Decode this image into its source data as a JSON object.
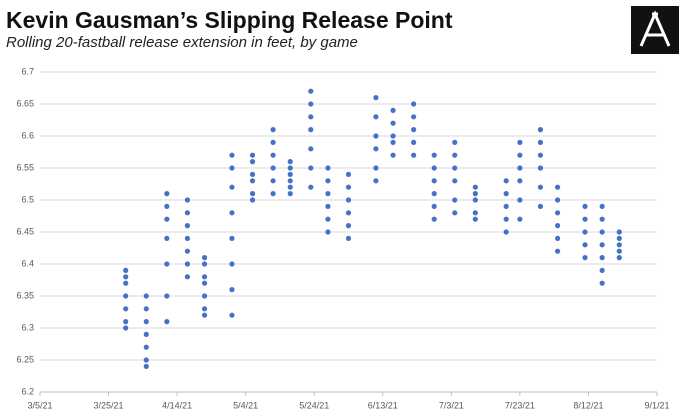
{
  "chart_data": {
    "type": "scatter",
    "title": "Kevin Gausman’s Slipping Release Point",
    "subtitle": "Rolling 20-fastball release extension in feet, by game",
    "color": "#4472c4",
    "grid": true,
    "ylim": [
      6.2,
      6.7
    ],
    "yticks": [
      6.2,
      6.25,
      6.3,
      6.35,
      6.4,
      6.45,
      6.5,
      6.55,
      6.6,
      6.65,
      6.7
    ],
    "xlim": [
      "3/5/21",
      "9/1/21"
    ],
    "xticks": [
      "3/5/21",
      "3/25/21",
      "4/14/21",
      "5/4/21",
      "5/24/21",
      "6/13/21",
      "7/3/21",
      "7/23/21",
      "8/12/21",
      "9/1/21"
    ],
    "games": [
      {
        "x": "3/30/21",
        "values": [
          6.3,
          6.31,
          6.33,
          6.35,
          6.37,
          6.38,
          6.39
        ]
      },
      {
        "x": "4/5/21",
        "values": [
          6.24,
          6.25,
          6.27,
          6.29,
          6.31,
          6.33,
          6.35
        ]
      },
      {
        "x": "4/11/21",
        "values": [
          6.31,
          6.35,
          6.4,
          6.44,
          6.47,
          6.49,
          6.51
        ]
      },
      {
        "x": "4/17/21",
        "values": [
          6.38,
          6.4,
          6.42,
          6.44,
          6.46,
          6.48,
          6.5
        ]
      },
      {
        "x": "4/22/21",
        "values": [
          6.32,
          6.33,
          6.35,
          6.37,
          6.38,
          6.4,
          6.41
        ]
      },
      {
        "x": "4/30/21",
        "values": [
          6.32,
          6.36,
          6.4,
          6.44,
          6.48,
          6.52,
          6.55,
          6.57
        ]
      },
      {
        "x": "5/6/21",
        "values": [
          6.5,
          6.51,
          6.53,
          6.54,
          6.56,
          6.57
        ]
      },
      {
        "x": "5/12/21",
        "values": [
          6.51,
          6.53,
          6.55,
          6.57,
          6.59,
          6.61
        ]
      },
      {
        "x": "5/17/21",
        "values": [
          6.51,
          6.52,
          6.53,
          6.54,
          6.55,
          6.56
        ]
      },
      {
        "x": "5/23/21",
        "values": [
          6.52,
          6.55,
          6.58,
          6.61,
          6.63,
          6.65,
          6.67
        ]
      },
      {
        "x": "5/28/21",
        "values": [
          6.45,
          6.47,
          6.49,
          6.51,
          6.53,
          6.55
        ]
      },
      {
        "x": "6/3/21",
        "values": [
          6.44,
          6.46,
          6.48,
          6.5,
          6.52,
          6.54
        ]
      },
      {
        "x": "6/11/21",
        "values": [
          6.53,
          6.55,
          6.58,
          6.6,
          6.63,
          6.66
        ]
      },
      {
        "x": "6/16/21",
        "values": [
          6.57,
          6.59,
          6.6,
          6.62,
          6.64
        ]
      },
      {
        "x": "6/22/21",
        "values": [
          6.57,
          6.59,
          6.61,
          6.63,
          6.65
        ]
      },
      {
        "x": "6/28/21",
        "values": [
          6.47,
          6.49,
          6.51,
          6.53,
          6.55,
          6.57
        ]
      },
      {
        "x": "7/4/21",
        "values": [
          6.48,
          6.5,
          6.53,
          6.55,
          6.57,
          6.59
        ]
      },
      {
        "x": "7/10/21",
        "values": [
          6.47,
          6.48,
          6.5,
          6.51,
          6.52
        ]
      },
      {
        "x": "7/19/21",
        "values": [
          6.45,
          6.47,
          6.49,
          6.51,
          6.53
        ]
      },
      {
        "x": "7/23/21",
        "values": [
          6.47,
          6.5,
          6.53,
          6.55,
          6.57,
          6.59
        ]
      },
      {
        "x": "7/29/21",
        "values": [
          6.49,
          6.52,
          6.55,
          6.57,
          6.59,
          6.61
        ]
      },
      {
        "x": "8/3/21",
        "values": [
          6.42,
          6.44,
          6.46,
          6.48,
          6.5,
          6.52
        ]
      },
      {
        "x": "8/11/21",
        "values": [
          6.41,
          6.43,
          6.45,
          6.47,
          6.49
        ]
      },
      {
        "x": "8/16/21",
        "values": [
          6.37,
          6.39,
          6.41,
          6.43,
          6.45,
          6.47,
          6.49
        ]
      },
      {
        "x": "8/21/21",
        "values": [
          6.41,
          6.42,
          6.43,
          6.44,
          6.45
        ]
      }
    ]
  }
}
